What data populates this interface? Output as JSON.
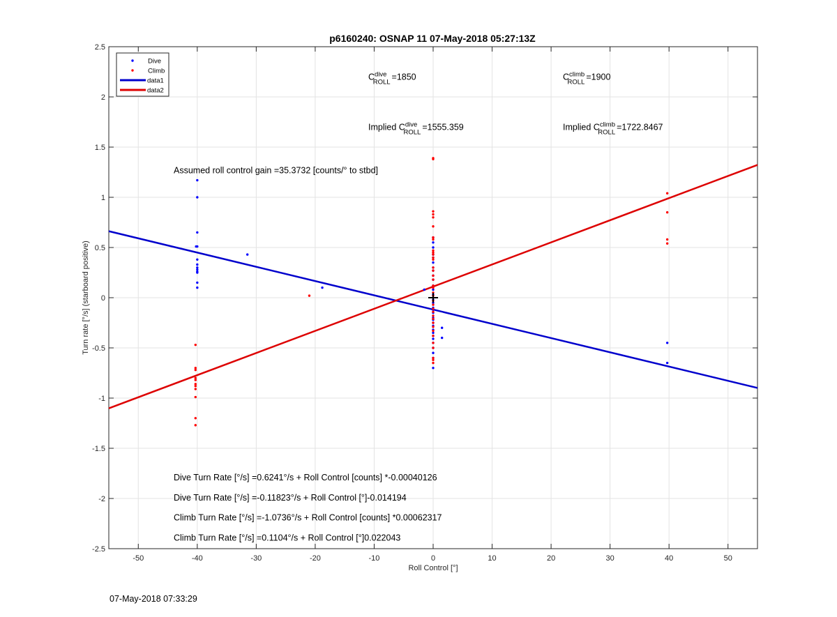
{
  "footer": {
    "timestamp": "07-May-2018 07:33:29"
  },
  "chart_data": {
    "type": "scatter",
    "title": "p6160240: OSNAP 11 07-May-2018 05:27:13Z",
    "xlabel": "Roll Control [°]",
    "ylabel": "Turn rate [°/s] (starboard positive)",
    "xlim": [
      -55,
      55
    ],
    "ylim": [
      -2.5,
      2.5
    ],
    "xticks": [
      -50,
      -40,
      -30,
      -20,
      -10,
      0,
      10,
      20,
      30,
      40,
      50
    ],
    "yticks": [
      -2.5,
      -2,
      -1.5,
      -1,
      -0.5,
      0,
      0.5,
      1,
      1.5,
      2,
      2.5
    ],
    "grid": true,
    "legend": {
      "placement": "top-left",
      "entries": [
        {
          "label": "Dive",
          "style": "marker",
          "color": "#0000ff"
        },
        {
          "label": "Climb",
          "style": "marker",
          "color": "#ff0000"
        },
        {
          "label": "data1",
          "style": "line",
          "color": "#0000cc"
        },
        {
          "label": "data2",
          "style": "line",
          "color": "#dd0000"
        }
      ]
    },
    "series": [
      {
        "name": "Dive",
        "color": "#0000ff",
        "points": [
          [
            -40,
            1.17
          ],
          [
            -40,
            1.0
          ],
          [
            -40,
            0.65
          ],
          [
            -40,
            0.51
          ],
          [
            -40.2,
            0.51
          ],
          [
            -40,
            0.38
          ],
          [
            -40,
            0.33
          ],
          [
            -40,
            0.3
          ],
          [
            -40,
            0.28
          ],
          [
            -40,
            0.26
          ],
          [
            -40,
            0.25
          ],
          [
            -40,
            0.15
          ],
          [
            -40,
            0.1
          ],
          [
            -31.5,
            0.43
          ],
          [
            -18.8,
            0.1
          ],
          [
            -1.5,
            0.08
          ],
          [
            0,
            0.6
          ],
          [
            0,
            0.55
          ],
          [
            0,
            0.5
          ],
          [
            0,
            0.43
          ],
          [
            0,
            0.4
          ],
          [
            0,
            0.35
          ],
          [
            0,
            0.3
          ],
          [
            0,
            0.27
          ],
          [
            0,
            0.22
          ],
          [
            0,
            0.18
          ],
          [
            0,
            0.12
          ],
          [
            0,
            0.08
          ],
          [
            0,
            0.03
          ],
          [
            0,
            -0.02
          ],
          [
            0,
            -0.05
          ],
          [
            0,
            -0.1
          ],
          [
            0,
            -0.12
          ],
          [
            0,
            -0.15
          ],
          [
            0,
            -0.2
          ],
          [
            0,
            -0.22
          ],
          [
            0,
            -0.25
          ],
          [
            0,
            -0.28
          ],
          [
            0,
            -0.32
          ],
          [
            0,
            -0.35
          ],
          [
            0,
            -0.38
          ],
          [
            0,
            -0.41
          ],
          [
            0,
            -0.45
          ],
          [
            0,
            -0.5
          ],
          [
            0,
            -0.55
          ],
          [
            0,
            -0.6
          ],
          [
            0,
            -0.7
          ],
          [
            1.5,
            -0.3
          ],
          [
            1.5,
            -0.4
          ],
          [
            39.7,
            -0.45
          ],
          [
            39.7,
            -0.65
          ]
        ]
      },
      {
        "name": "Climb",
        "color": "#ff0000",
        "points": [
          [
            -40.3,
            -0.47
          ],
          [
            -40.3,
            -0.7
          ],
          [
            -40.3,
            -0.72
          ],
          [
            -40.3,
            -0.8
          ],
          [
            -40.3,
            -0.82
          ],
          [
            -40.3,
            -0.86
          ],
          [
            -40.3,
            -0.88
          ],
          [
            -40.3,
            -0.91
          ],
          [
            -40.3,
            -0.99
          ],
          [
            -40.3,
            -1.2
          ],
          [
            -40.3,
            -1.27
          ],
          [
            -21,
            0.02
          ],
          [
            0,
            1.39
          ],
          [
            0,
            1.38
          ],
          [
            0,
            0.86
          ],
          [
            0,
            0.83
          ],
          [
            0,
            0.8
          ],
          [
            0,
            0.71
          ],
          [
            0,
            0.6
          ],
          [
            0,
            0.58
          ],
          [
            0,
            0.47
          ],
          [
            0,
            0.45
          ],
          [
            0,
            0.43
          ],
          [
            0,
            0.4
          ],
          [
            0,
            0.38
          ],
          [
            0,
            0.3
          ],
          [
            0,
            0.27
          ],
          [
            0,
            0.22
          ],
          [
            0,
            0.18
          ],
          [
            0,
            0.12
          ],
          [
            0,
            0.1
          ],
          [
            0,
            0.05
          ],
          [
            0,
            0.02
          ],
          [
            0,
            -0.03
          ],
          [
            0,
            -0.07
          ],
          [
            0,
            -0.11
          ],
          [
            0,
            -0.14
          ],
          [
            0,
            -0.18
          ],
          [
            0,
            -0.21
          ],
          [
            0,
            -0.25
          ],
          [
            0,
            -0.29
          ],
          [
            0,
            -0.33
          ],
          [
            0,
            -0.38
          ],
          [
            0,
            -0.45
          ],
          [
            0,
            -0.5
          ],
          [
            0,
            -0.6
          ],
          [
            0,
            -0.62
          ],
          [
            0,
            -0.65
          ],
          [
            39.7,
            1.04
          ],
          [
            39.7,
            0.85
          ],
          [
            39.7,
            0.58
          ],
          [
            39.7,
            0.54
          ]
        ]
      }
    ],
    "lines": [
      {
        "name": "data1",
        "color": "#0000cc",
        "slope": -0.014194,
        "intercept": -0.11823
      },
      {
        "name": "data2",
        "color": "#dd0000",
        "slope": 0.022043,
        "intercept": 0.1104
      }
    ],
    "origin_marker": {
      "x": 0,
      "y": 0,
      "symbol": "+"
    },
    "annotations": {
      "c_dive": {
        "sup": "dive",
        "sub": "ROLL",
        "value": "=1850",
        "x": -11,
        "y": 2.17
      },
      "c_climb": {
        "sup": "climb",
        "sub": "ROLL",
        "value": "=1900",
        "x": 22,
        "y": 2.17
      },
      "implied_dive": {
        "prefix": "Implied ",
        "sup": "dive",
        "sub": "ROLL",
        "value": "=1555.359",
        "x": -11,
        "y": 1.67
      },
      "implied_climb": {
        "prefix": "Implied ",
        "sup": "climb",
        "sub": "ROLL",
        "value": "=1722.8467",
        "x": 22,
        "y": 1.67
      },
      "gain": {
        "text": "Assumed roll control gain =35.3732 [counts/° to stbd]",
        "x": -44,
        "y": 1.24
      },
      "eq1": {
        "text": "Dive Turn Rate [°/s] =0.6241°/s + Roll Control [counts] *-0.00040126",
        "x": -44,
        "y": -1.82
      },
      "eq2": {
        "text": "Dive Turn Rate [°/s] =-0.11823°/s + Roll Control [°]-0.014194",
        "x": -44,
        "y": -2.02
      },
      "eq3": {
        "text": "Climb Turn Rate [°/s] =-1.0736°/s + Roll Control [counts] *0.00062317",
        "x": -44,
        "y": -2.22
      },
      "eq4": {
        "text": "Climb Turn Rate [°/s] =0.1104°/s + Roll Control [°]0.022043",
        "x": -44,
        "y": -2.42
      }
    }
  }
}
